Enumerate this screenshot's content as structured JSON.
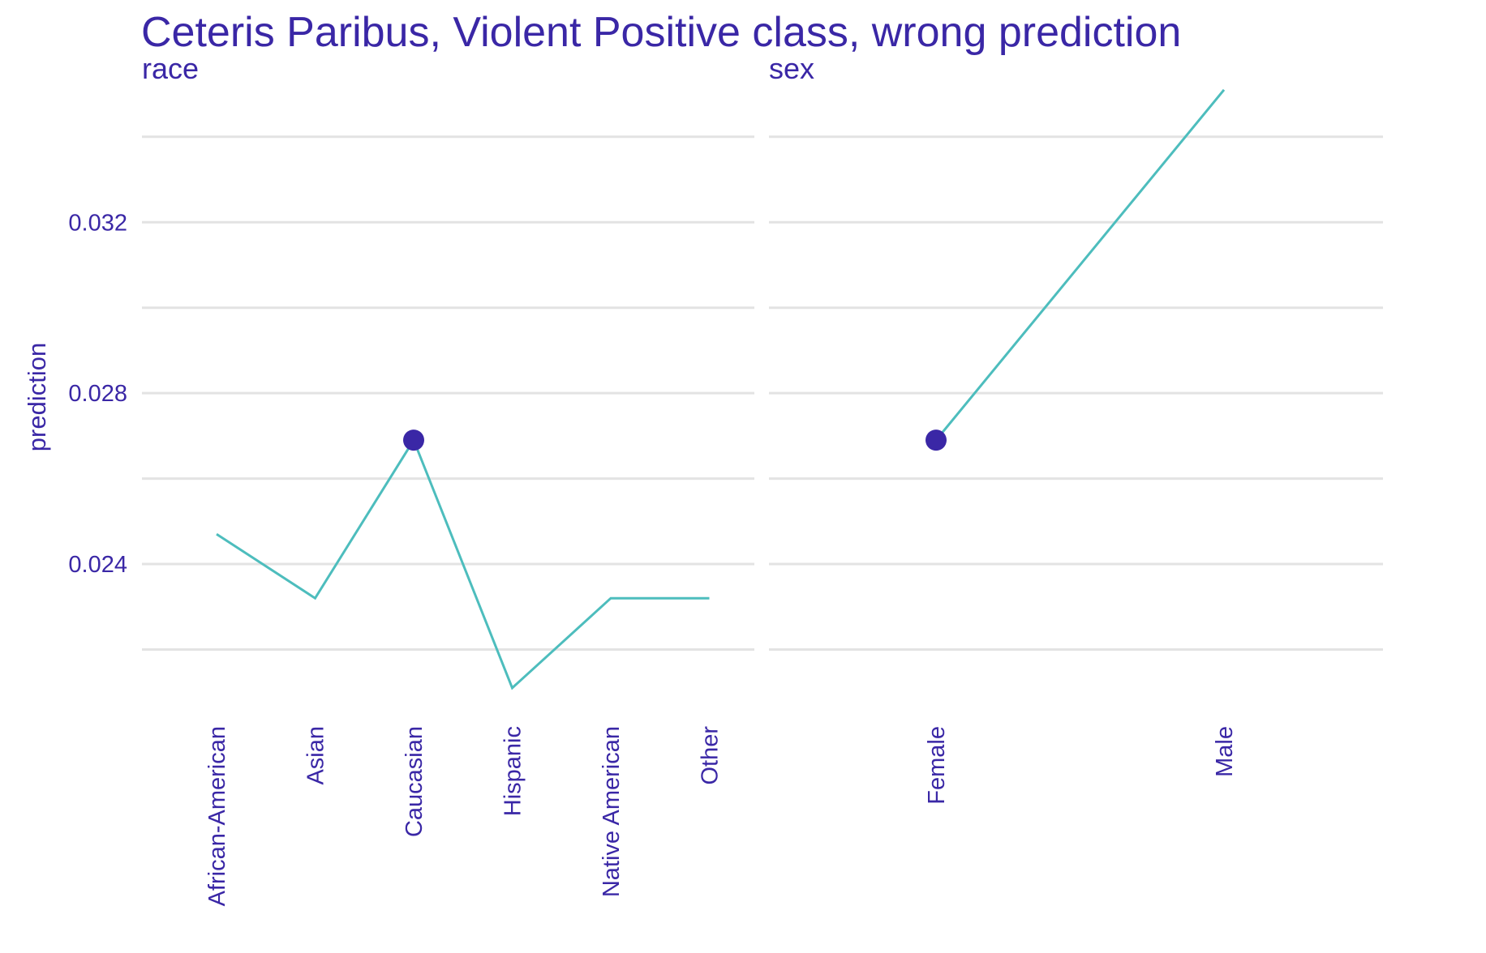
{
  "colors": {
    "text": "#3a27a6",
    "line": "#4dbdbd",
    "point": "#3a27a6",
    "grid": "#e3e3e3"
  },
  "chart_data": {
    "type": "line",
    "title": "Ceteris Paribus, Violent Positive class, wrong prediction",
    "ylabel": "prediction",
    "ylim": [
      0.0207,
      0.0354
    ],
    "yticks": [
      0.024,
      0.028,
      0.032
    ],
    "ytick_labels": [
      "0.024",
      "0.028",
      "0.032"
    ],
    "y_minor_gridlines": [
      0.022,
      0.026,
      0.03,
      0.034
    ],
    "grid": true,
    "panels": [
      {
        "name": "race",
        "categories": [
          "African-American",
          "Asian",
          "Caucasian",
          "Hispanic",
          "Native American",
          "Other"
        ],
        "values": [
          0.0247,
          0.0232,
          0.0269,
          0.0211,
          0.0232,
          0.0232
        ],
        "observed": {
          "category": "Caucasian",
          "value": 0.0269
        }
      },
      {
        "name": "sex",
        "categories": [
          "Female",
          "Male"
        ],
        "values": [
          0.0269,
          0.0351
        ],
        "observed": {
          "category": "Female",
          "value": 0.0269
        }
      }
    ]
  }
}
